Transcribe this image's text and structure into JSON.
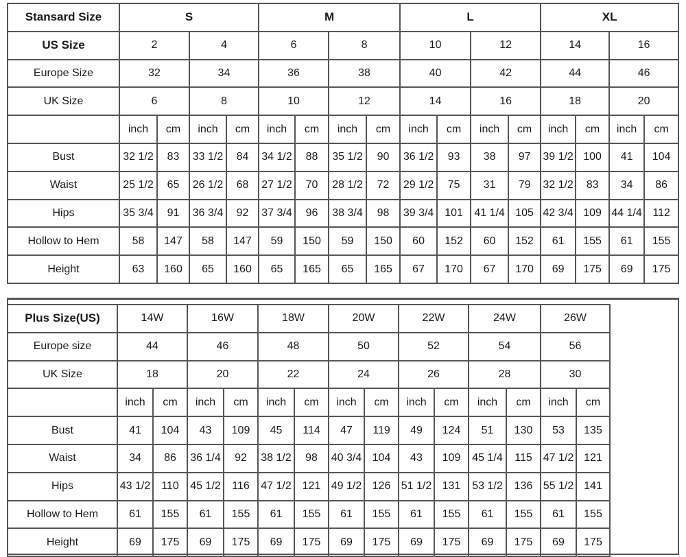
{
  "standard": {
    "header_label": "Stansard Size",
    "size_groups": [
      "S",
      "M",
      "L",
      "XL"
    ],
    "us_label": "US Size",
    "us_sizes": [
      "2",
      "4",
      "6",
      "8",
      "10",
      "12",
      "14",
      "16"
    ],
    "europe_label": "Europe Size",
    "europe_sizes": [
      "32",
      "34",
      "36",
      "38",
      "40",
      "42",
      "44",
      "46"
    ],
    "uk_label": "UK Size",
    "uk_sizes": [
      "6",
      "8",
      "10",
      "12",
      "14",
      "16",
      "18",
      "20"
    ],
    "unit_inch": "inch",
    "unit_cm": "cm",
    "measurements": [
      {
        "label": "Bust",
        "values": [
          "32 1/2",
          "83",
          "33 1/2",
          "84",
          "34 1/2",
          "88",
          "35 1/2",
          "90",
          "36 1/2",
          "93",
          "38",
          "97",
          "39 1/2",
          "100",
          "41",
          "104"
        ]
      },
      {
        "label": "Waist",
        "values": [
          "25 1/2",
          "65",
          "26 1/2",
          "68",
          "27 1/2",
          "70",
          "28 1/2",
          "72",
          "29 1/2",
          "75",
          "31",
          "79",
          "32 1/2",
          "83",
          "34",
          "86"
        ]
      },
      {
        "label": "Hips",
        "values": [
          "35 3/4",
          "91",
          "36 3/4",
          "92",
          "37 3/4",
          "96",
          "38 3/4",
          "98",
          "39 3/4",
          "101",
          "41 1/4",
          "105",
          "42 3/4",
          "109",
          "44 1/4",
          "112"
        ]
      },
      {
        "label": "Hollow to Hem",
        "values": [
          "58",
          "147",
          "58",
          "147",
          "59",
          "150",
          "59",
          "150",
          "60",
          "152",
          "60",
          "152",
          "61",
          "155",
          "61",
          "155"
        ]
      },
      {
        "label": "Height",
        "values": [
          "63",
          "160",
          "65",
          "160",
          "65",
          "165",
          "65",
          "165",
          "67",
          "170",
          "67",
          "170",
          "69",
          "175",
          "69",
          "175"
        ]
      }
    ]
  },
  "plus": {
    "header_label": "Plus Size(US)",
    "us_sizes": [
      "14W",
      "16W",
      "18W",
      "20W",
      "22W",
      "24W",
      "26W"
    ],
    "europe_label": "Europe size",
    "europe_sizes": [
      "44",
      "46",
      "48",
      "50",
      "52",
      "54",
      "56"
    ],
    "uk_label": "UK Size",
    "uk_sizes": [
      "18",
      "20",
      "22",
      "24",
      "26",
      "28",
      "30"
    ],
    "unit_inch": "inch",
    "unit_cm": "cm",
    "measurements": [
      {
        "label": "Bust",
        "values": [
          "41",
          "104",
          "43",
          "109",
          "45",
          "114",
          "47",
          "119",
          "49",
          "124",
          "51",
          "130",
          "53",
          "135"
        ]
      },
      {
        "label": "Waist",
        "values": [
          "34",
          "86",
          "36 1/4",
          "92",
          "38 1/2",
          "98",
          "40 3/4",
          "104",
          "43",
          "109",
          "45 1/4",
          "115",
          "47 1/2",
          "121"
        ]
      },
      {
        "label": "Hips",
        "values": [
          "43 1/2",
          "110",
          "45 1/2",
          "116",
          "47 1/2",
          "121",
          "49 1/2",
          "126",
          "51 1/2",
          "131",
          "53 1/2",
          "136",
          "55 1/2",
          "141"
        ]
      },
      {
        "label": "Hollow to Hem",
        "values": [
          "61",
          "155",
          "61",
          "155",
          "61",
          "155",
          "61",
          "155",
          "61",
          "155",
          "61",
          "155",
          "61",
          "155"
        ]
      },
      {
        "label": "Height",
        "values": [
          "69",
          "175",
          "69",
          "175",
          "69",
          "175",
          "69",
          "175",
          "69",
          "175",
          "69",
          "175",
          "69",
          "175"
        ]
      }
    ]
  }
}
